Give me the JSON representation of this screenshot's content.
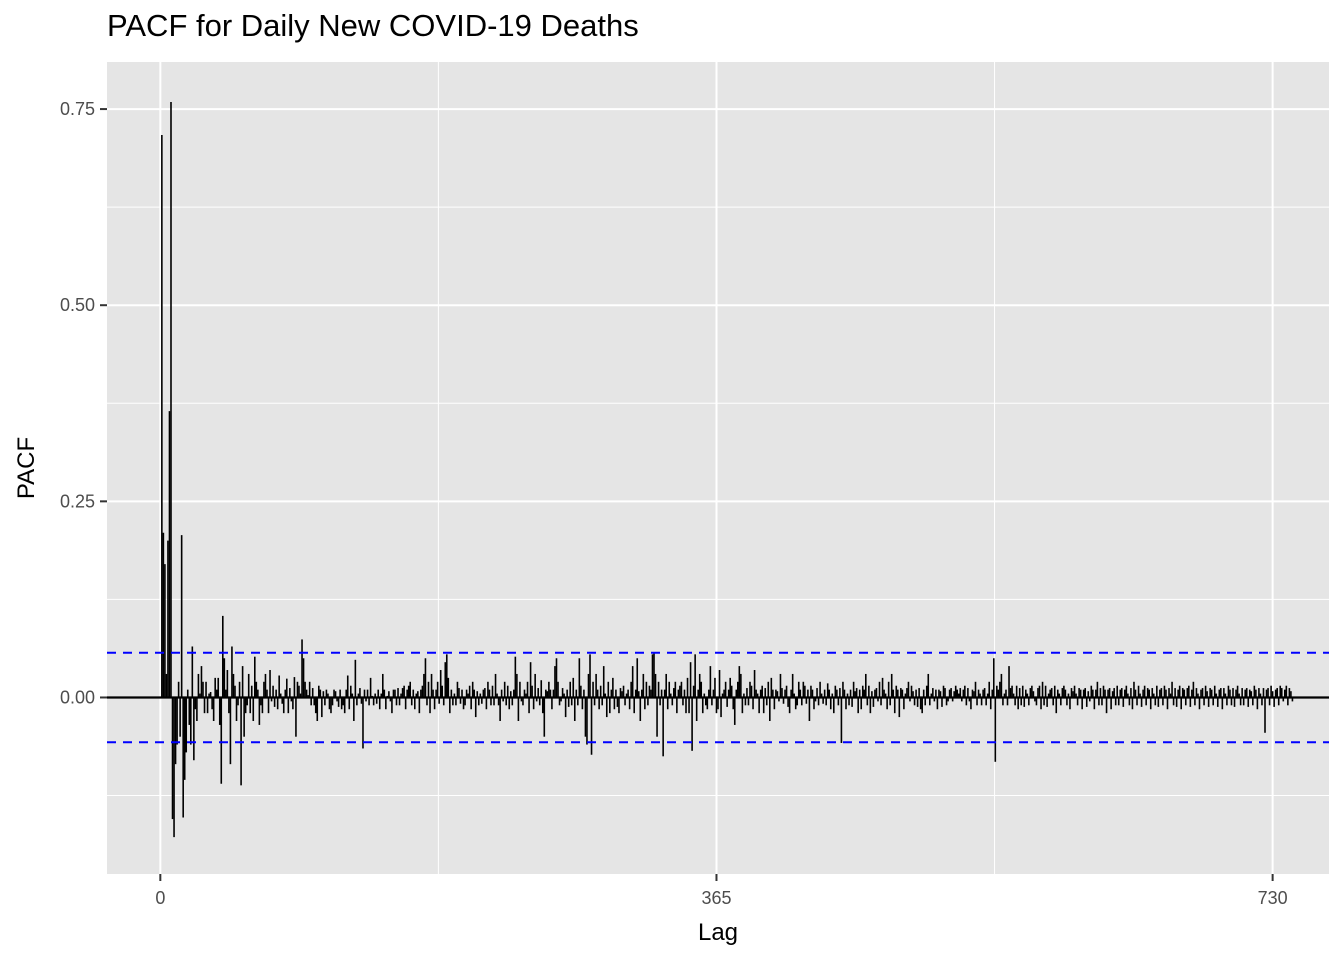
{
  "chart_data": {
    "type": "bar",
    "title": "PACF for Daily New COVID-19 Deaths",
    "xlabel": "Lag",
    "ylabel": "PACF",
    "xlim": [
      -35,
      767
    ],
    "ylim": [
      -0.225,
      0.81
    ],
    "x_ticks": [
      0,
      365,
      730
    ],
    "x_tick_labels": [
      "0",
      "365",
      "730"
    ],
    "y_ticks": [
      0.0,
      0.25,
      0.5,
      0.75
    ],
    "y_tick_labels": [
      "0.00",
      "0.25",
      "0.50",
      "0.75"
    ],
    "confidence_bounds": [
      0.057,
      -0.057
    ],
    "grid": true,
    "colors": {
      "panel": "#e5e5e5",
      "grid": "#ffffff",
      "bars": "#000000",
      "bounds": "#0000ff",
      "axis_text": "#4d4d4d"
    },
    "series": [
      {
        "x_start": 1,
        "values": [
          0.717,
          0.21,
          0.17,
          0.03,
          0.2,
          0.365,
          0.759,
          -0.155,
          -0.178,
          -0.085,
          -0.06,
          0.02,
          -0.05,
          0.207,
          -0.153,
          -0.105,
          -0.07,
          0.01,
          -0.035,
          -0.06,
          0.065,
          -0.08,
          -0.015,
          -0.03,
          0.03,
          0.005,
          0.04,
          0.02,
          -0.02,
          0.02,
          -0.02,
          0.005,
          0.007,
          -0.015,
          -0.03,
          0.025,
          0.01,
          0.025,
          -0.035,
          -0.11,
          0.104,
          0.05,
          0.01,
          0.035,
          -0.02,
          -0.085,
          0.065,
          0.03,
          0.015,
          -0.03,
          -0.01,
          0.02,
          -0.112,
          0.04,
          -0.05,
          -0.02,
          -0.01,
          0.03,
          -0.02,
          0.015,
          -0.03,
          0.052,
          0.02,
          0.01,
          -0.035,
          -0.01,
          -0.02,
          0.02,
          0.03,
          0.01,
          -0.02,
          0.035,
          -0.005,
          0.015,
          -0.012,
          0.01,
          -0.015,
          0.028,
          0.005,
          -0.008,
          -0.02,
          0.01,
          0.024,
          -0.02,
          0.012,
          -0.005,
          -0.015,
          0.026,
          -0.05,
          0.02,
          0.015,
          0.005,
          0.074,
          0.05,
          0.02,
          0.01,
          0.003,
          0.02,
          -0.01,
          0.012,
          -0.01,
          -0.02,
          -0.03,
          0.015,
          0.01,
          -0.025,
          0.008,
          -0.01,
          0.01,
          0.005,
          -0.015,
          -0.02,
          -0.01,
          0.01,
          0.008,
          -0.005,
          -0.012,
          0.01,
          -0.015,
          -0.01,
          -0.02,
          0.01,
          0.028,
          -0.015,
          0.015,
          0.005,
          -0.03,
          0.048,
          -0.01,
          0.005,
          0.012,
          -0.008,
          -0.065,
          0.01,
          -0.005,
          0.01,
          -0.01,
          0.025,
          0.002,
          -0.01,
          0.005,
          -0.008,
          0.01,
          -0.015,
          0.005,
          0.03,
          0.01,
          -0.015,
          0.002,
          0.008,
          -0.005,
          -0.02,
          0.01,
          0.01,
          -0.01,
          0.012,
          -0.01,
          0.005,
          0.012,
          0.015,
          -0.015,
          0.01,
          0.015,
          0.02,
          -0.01,
          0.01,
          -0.015,
          0.005,
          0.008,
          -0.02,
          0.01,
          0.015,
          0.03,
          0.05,
          -0.01,
          0.02,
          -0.02,
          0.03,
          0.01,
          -0.015,
          0.01,
          0.02,
          -0.008,
          0.035,
          0.015,
          -0.01,
          0.045,
          0.055,
          0.025,
          -0.02,
          0.01,
          -0.01,
          0.005,
          -0.01,
          0.02,
          0.012,
          -0.008,
          0.01,
          -0.015,
          -0.01,
          0.01,
          0.005,
          0.015,
          -0.015,
          0.02,
          0.01,
          -0.025,
          0.008,
          -0.01,
          0.005,
          -0.008,
          0.01,
          0.012,
          -0.015,
          0.02,
          0.01,
          -0.01,
          0.015,
          -0.01,
          0.03,
          0.005,
          -0.01,
          -0.03,
          0.01,
          -0.005,
          0.02,
          -0.01,
          0.015,
          -0.015,
          0.008,
          -0.01,
          0.01,
          0.052,
          0.03,
          -0.03,
          0.02,
          -0.005,
          -0.01,
          0.01,
          0.005,
          0.02,
          -0.02,
          0.045,
          0.015,
          -0.015,
          0.03,
          -0.005,
          0.012,
          -0.01,
          0.022,
          -0.02,
          -0.05,
          0.01,
          0.008,
          0.02,
          0.01,
          -0.015,
          0.01,
          0.04,
          0.05,
          0.02,
          -0.01,
          -0.005,
          0.012,
          0.005,
          -0.025,
          0.01,
          -0.012,
          0.02,
          -0.01,
          0.025,
          -0.03,
          0.01,
          -0.01,
          0.05,
          0.015,
          -0.015,
          0.01,
          -0.05,
          -0.06,
          0.03,
          0.055,
          -0.073,
          0.02,
          -0.01,
          0.03,
          0.01,
          -0.015,
          0.015,
          -0.01,
          0.04,
          0.005,
          -0.025,
          0.02,
          -0.02,
          0.01,
          0.025,
          -0.015,
          0.01,
          -0.012,
          -0.02,
          0.012,
          0.008,
          0.015,
          -0.01,
          0.005,
          0.01,
          -0.015,
          0.02,
          0.04,
          -0.02,
          0.01,
          0.05,
          0.008,
          -0.03,
          0.01,
          0.03,
          -0.015,
          0.02,
          -0.01,
          0.015,
          0.01,
          0.055,
          0.057,
          0.03,
          -0.05,
          0.02,
          -0.01,
          0.01,
          -0.075,
          0.01,
          0.03,
          -0.015,
          0.02,
          0.005,
          -0.01,
          0.012,
          0.02,
          -0.02,
          0.01,
          0.015,
          0.02,
          -0.01,
          0.01,
          -0.02,
          0.025,
          -0.02,
          0.045,
          -0.068,
          0.015,
          0.055,
          -0.03,
          0.01,
          0.03,
          0.02,
          -0.02,
          0.005,
          -0.01,
          -0.015,
          0.01,
          0.04,
          -0.01,
          0.01,
          0.025,
          -0.02,
          -0.015,
          0.035,
          -0.025,
          0.005,
          0.01,
          0.02,
          -0.012,
          0.01,
          0.025,
          0.015,
          -0.015,
          -0.035,
          0.01,
          0.02,
          0.04,
          0.03,
          -0.02,
          0.005,
          -0.01,
          0.012,
          -0.01,
          0.02,
          0.015,
          -0.015,
          0.035,
          0.01,
          0.005,
          -0.02,
          0.01,
          0.015,
          -0.02,
          0.012,
          -0.01,
          0.02,
          -0.03,
          0.025,
          0.01,
          -0.015,
          0.01,
          0.008,
          -0.005,
          0.03,
          0.012,
          -0.008,
          0.01,
          0.015,
          -0.012,
          -0.02,
          0.01,
          0.03,
          0.005,
          -0.015,
          -0.01,
          0.02,
          0.01,
          -0.01,
          0.02,
          0.015,
          -0.008,
          0.01,
          -0.03,
          0.015,
          0.01,
          -0.015,
          -0.005,
          0.012,
          -0.01,
          0.02,
          0.005,
          -0.008,
          0.01,
          -0.01,
          0.018,
          0.01,
          -0.015,
          0.005,
          -0.02,
          0.015,
          0.01,
          -0.01,
          0.012,
          -0.058,
          0.02,
          0.01,
          -0.015,
          0.005,
          -0.01,
          0.01,
          -0.012,
          0.02,
          0.008,
          0.012,
          -0.02,
          0.01,
          -0.015,
          0.015,
          0.01,
          0.03,
          -0.01,
          0.015,
          -0.02,
          0.008,
          -0.012,
          0.01,
          0.012,
          -0.005,
          0.02,
          -0.01,
          0.025,
          0.01,
          0.005,
          -0.015,
          0.02,
          -0.01,
          0.03,
          0.01,
          -0.02,
          0.015,
          0.01,
          -0.025,
          0.012,
          0.01,
          -0.015,
          0.005,
          0.012,
          0.02,
          -0.005,
          0.015,
          0.008,
          -0.01,
          0.01,
          -0.012,
          0.012,
          -0.015,
          -0.02,
          0.01,
          -0.01,
          0.015,
          0.03,
          -0.01,
          0.005,
          0.012,
          -0.005,
          0.01,
          -0.015,
          0.01,
          0.008,
          -0.012,
          0.015,
          0.012,
          -0.01,
          -0.005,
          0.01,
          0.012,
          -0.005,
          0.008,
          0.015,
          0.01,
          0.005,
          0.012,
          -0.005,
          0.01,
          0.015,
          -0.01,
          0.012,
          -0.005,
          -0.015,
          0.01,
          0.008,
          0.02,
          -0.01,
          0.01,
          0.005,
          -0.01,
          0.01,
          0.012,
          -0.01,
          0.005,
          0.02,
          -0.015,
          0.01,
          0.05,
          -0.082,
          0.015,
          0.01,
          0.02,
          0.03,
          -0.01,
          0.005,
          0.01,
          -0.01,
          0.04,
          0.012,
          0.015,
          0.005,
          -0.01,
          0.015,
          -0.015,
          0.012,
          -0.01,
          0.015,
          -0.012,
          0.01,
          0.005,
          -0.01,
          0.012,
          0.015,
          0.008,
          -0.005,
          -0.01,
          0.012,
          0.015,
          -0.015,
          0.02,
          -0.01,
          0.015,
          -0.012,
          0.005,
          0.01,
          0.012,
          -0.01,
          0.015,
          -0.02,
          0.01,
          0.005,
          -0.01,
          0.012,
          0.015,
          0.01,
          -0.01,
          0.005,
          -0.015,
          0.012,
          0.008,
          0.015,
          0.005,
          -0.01,
          0.012,
          0.01,
          -0.015,
          0.01,
          0.012,
          -0.012,
          0.008,
          -0.005,
          0.015,
          0.01,
          -0.015,
          0.01,
          0.02,
          -0.01,
          0.012,
          -0.01,
          0.015,
          0.01,
          -0.02,
          0.01,
          0.012,
          -0.015,
          0.008,
          0.012,
          -0.01,
          0.015,
          -0.01,
          0.01,
          0.012,
          -0.012,
          0.01,
          0.015,
          0.005,
          -0.01,
          0.012,
          -0.015,
          0.02,
          0.01,
          -0.01,
          0.015,
          0.005,
          -0.012,
          0.01,
          0.015,
          -0.01,
          0.012,
          0.01,
          -0.015,
          0.012,
          0.005,
          -0.01,
          0.015,
          -0.012,
          0.01,
          0.012,
          -0.01,
          0.015,
          0.01,
          -0.015,
          0.012,
          0.005,
          0.02,
          -0.01,
          0.012,
          -0.012,
          0.01,
          0.015,
          -0.015,
          0.012,
          0.01,
          -0.01,
          0.012,
          0.015,
          -0.012,
          0.01,
          0.02,
          -0.01,
          0.012,
          0.005,
          -0.015,
          0.01,
          0.012,
          -0.01,
          0.015,
          0.008,
          -0.012,
          0.012,
          0.01,
          -0.01,
          0.015,
          0.005,
          -0.012,
          0.01,
          0.012,
          -0.015,
          0.012,
          0.005,
          -0.01,
          0.015,
          0.01,
          -0.01,
          0.012,
          -0.012,
          0.01,
          0.015,
          0.005,
          -0.01,
          0.012,
          -0.01,
          0.01,
          0.012,
          -0.012,
          0.01,
          0.008,
          -0.01,
          0.015,
          0.01,
          -0.015,
          0.012,
          0.005,
          -0.01,
          0.012,
          -0.045,
          0.01,
          0.012,
          -0.01,
          0.015,
          0.008,
          -0.012,
          0.01,
          0.012,
          -0.01,
          0.015,
          0.012,
          -0.005,
          0.01,
          0.015,
          -0.01,
          0.012,
          0.008,
          -0.005
        ]
      }
    ]
  }
}
